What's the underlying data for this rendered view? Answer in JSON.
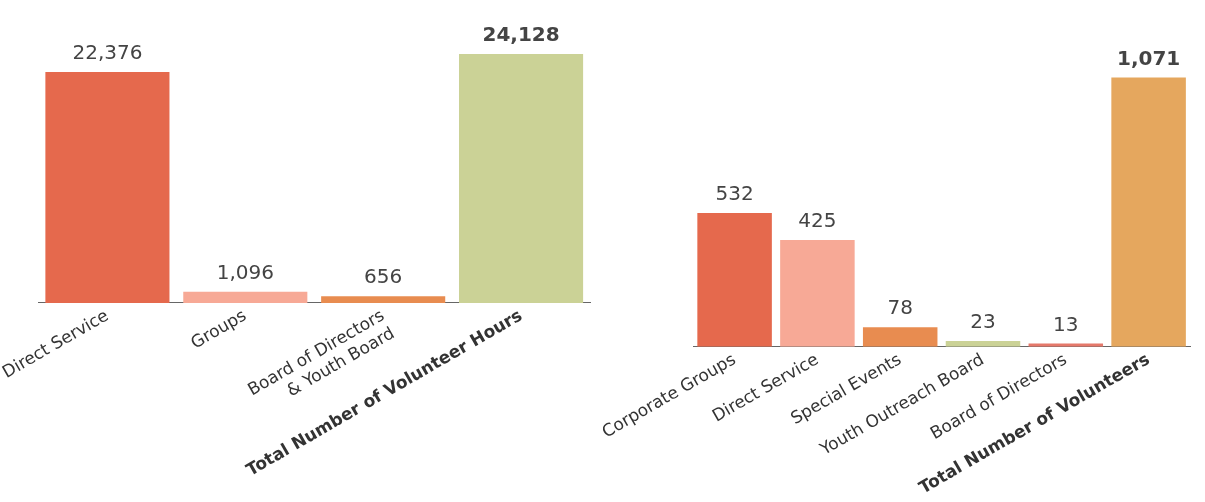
{
  "chart_data": [
    {
      "type": "bar",
      "categories": [
        "Direct Service",
        "Groups",
        "Board of Directors\n& Youth Board",
        "Total Number of Volunteer Hours"
      ],
      "values": [
        22376,
        1096,
        656,
        24128
      ],
      "colors": [
        "#e5694d",
        "#f7a996",
        "#e88c50",
        "#cbd296"
      ],
      "value_labels": [
        "22,376",
        "1,096",
        "656",
        "24,128"
      ],
      "grid": false,
      "legend": false
    },
    {
      "type": "bar",
      "categories": [
        "Corporate Groups",
        "Direct Service",
        "Special Events",
        "Youth Outreach Board",
        "Board of Directors",
        "Total Number of Volunteers"
      ],
      "values": [
        532,
        425,
        78,
        23,
        13,
        1071
      ],
      "colors": [
        "#e5694d",
        "#f7a996",
        "#e88c50",
        "#cbd296",
        "#e5796b",
        "#e5a75e"
      ],
      "value_labels": [
        "532",
        "425",
        "78",
        "23",
        "13",
        "1,071"
      ],
      "grid": false,
      "legend": false
    }
  ]
}
